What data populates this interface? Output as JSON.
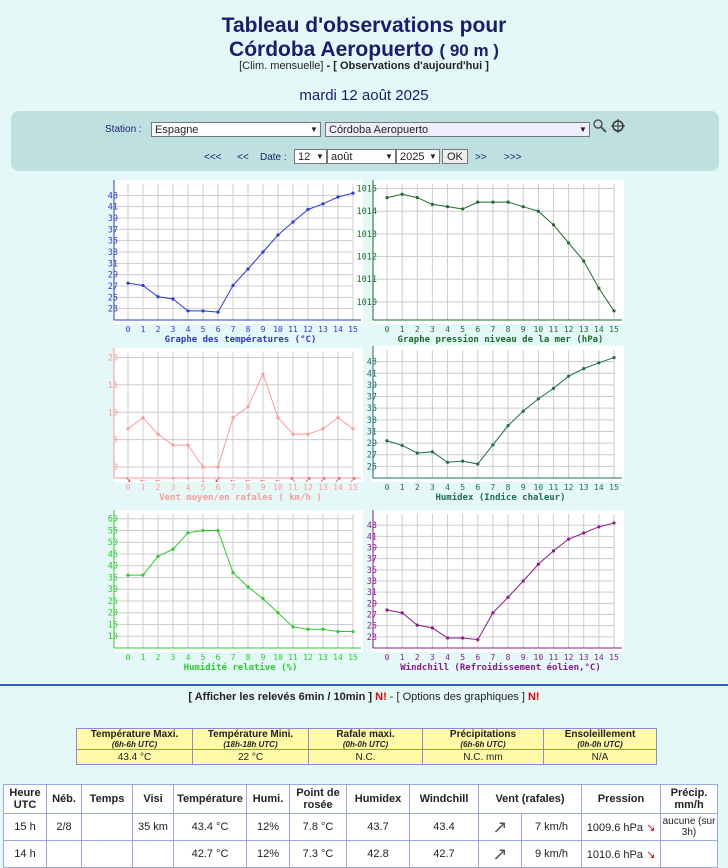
{
  "title": {
    "line1": "Tableau d'observations pour",
    "line2": "Córdoba Aeropuerto",
    "alt": "( 90 m )"
  },
  "links": {
    "clim": "Clim. mensuelle",
    "sep": " - ",
    "obs": "Observations d'aujourd'hui"
  },
  "date_text": "mardi 12 août 2025",
  "station": {
    "label": "Station :",
    "country": "Espagne",
    "name": "Córdoba Aeropuerto"
  },
  "datenav": {
    "far_back": "<<<",
    "back": "<<",
    "label": "Date :",
    "day": "12",
    "month": "août",
    "year": "2025",
    "ok": "OK",
    "fwd": ">>",
    "far_fwd": ">>>"
  },
  "charts": [
    {
      "id": "temp",
      "title": "Graphe des températures (°C)",
      "color": "#2a3bd6",
      "y_ticks": [
        23,
        25,
        27,
        29,
        31,
        33,
        35,
        37,
        39,
        41,
        43
      ],
      "ylim": [
        21,
        45
      ],
      "values": [
        27.5,
        27.1,
        25.1,
        24.7,
        22.6,
        22.6,
        22.4,
        27.1,
        30.0,
        33.0,
        36.0,
        38.3,
        40.5,
        41.5,
        42.7,
        43.4
      ]
    },
    {
      "id": "pres",
      "title": "Graphe pression niveau de la mer (hPa)",
      "color": "#1d6b2a",
      "y_ticks": [
        1010,
        1011,
        1012,
        1013,
        1014,
        1015
      ],
      "ylim": [
        1009.2,
        1015.2
      ],
      "values": [
        1014.6,
        1014.75,
        1014.6,
        1014.3,
        1014.2,
        1014.1,
        1014.4,
        1014.4,
        1014.4,
        1014.2,
        1014.0,
        1013.4,
        1012.6,
        1011.8,
        1010.6,
        1009.6
      ]
    },
    {
      "id": "vent",
      "title": "Vent moyen/en rafales ( km/h )",
      "color": "#ff9a9a",
      "y_ticks": [
        0,
        5,
        10,
        15,
        20
      ],
      "ylim": [
        -2,
        21
      ],
      "values": [
        7,
        9,
        6,
        4,
        4,
        0,
        0,
        9,
        11,
        17,
        9,
        6,
        6,
        7,
        9,
        7
      ],
      "arrows": [
        "↘",
        "←",
        "←",
        "↑",
        "↑",
        "↓",
        "↙",
        "←",
        "←",
        "←",
        "←",
        "↖",
        "↗",
        "↗",
        "↗",
        "↗"
      ]
    },
    {
      "id": "humidex",
      "title": "Humidex (Indice chaleur)",
      "color": "#1f6b5b",
      "y_ticks": [
        25,
        27,
        29,
        31,
        33,
        35,
        37,
        39,
        41,
        43
      ],
      "ylim": [
        23,
        45
      ],
      "values": [
        29.4,
        28.6,
        27.3,
        27.5,
        25.7,
        25.9,
        25.4,
        28.7,
        32.0,
        34.5,
        36.6,
        38.4,
        40.5,
        41.8,
        42.8,
        43.7
      ]
    },
    {
      "id": "hum",
      "title": "Humidité relative (%)",
      "color": "#2ccc2c",
      "y_ticks": [
        10,
        15,
        20,
        25,
        30,
        35,
        40,
        45,
        50,
        55,
        60
      ],
      "ylim": [
        5,
        62
      ],
      "values": [
        36,
        36,
        44,
        47,
        54,
        55,
        55,
        37,
        31,
        26,
        20,
        14,
        13,
        13,
        12,
        12
      ]
    },
    {
      "id": "wind",
      "title": "Windchill (Refroidissement éolien,°C)",
      "color": "#8b1a8b",
      "y_ticks": [
        23,
        25,
        27,
        29,
        31,
        33,
        35,
        37,
        39,
        41,
        43
      ],
      "ylim": [
        21,
        45
      ],
      "values": [
        27.8,
        27.3,
        25.1,
        24.6,
        22.8,
        22.8,
        22.5,
        27.3,
        30.1,
        33.0,
        36.0,
        38.4,
        40.5,
        41.6,
        42.7,
        43.4
      ]
    }
  ],
  "x_ticks": [
    "0",
    "1",
    "2",
    "3",
    "4",
    "5",
    "6",
    "7",
    "8",
    "9",
    "10",
    "11",
    "12",
    "13",
    "14",
    "15"
  ],
  "options_line": {
    "lb": "[",
    "show": "Afficher les relevés 6min / 10min",
    "rb": "]",
    "n1": "N!",
    "mid": " - [ Options des graphiques ]",
    "n2": "N!"
  },
  "summary": {
    "headers": [
      {
        "t": "Température Maxi.",
        "s": "(6h-6h UTC)"
      },
      {
        "t": "Température Mini.",
        "s": "(18h-18h UTC)"
      },
      {
        "t": "Rafale maxi.",
        "s": "(0h-0h UTC)"
      },
      {
        "t": "Précipitations",
        "s": "(6h-6h UTC)"
      },
      {
        "t": "Ensoleillement",
        "s": "(0h-0h UTC)"
      }
    ],
    "values": [
      "43.4 °C",
      "22 °C",
      "N.C.",
      "N.C. mm",
      "N/A"
    ]
  },
  "table": {
    "headers": [
      "Heure UTC",
      "Néb.",
      "Temps",
      "Visi",
      "Température",
      "Humi.",
      "Point de rosée",
      "Humidex",
      "Windchill",
      "Vent (rafales)",
      "Pression",
      "Précip. mm/h"
    ],
    "rows": [
      {
        "heure": "15 h",
        "neb": "2/8",
        "temps": "",
        "visi": "35 km",
        "temp": "43.4 °C",
        "hum": "12%",
        "rosee": "7.8 °C",
        "humidex": "43.7",
        "wc": "43.4",
        "dir": "↗",
        "vent": "7 km/h",
        "pres": "1009.6 hPa",
        "trend": "↘",
        "precip": "aucune (sur 3h)"
      },
      {
        "heure": "14 h",
        "neb": "",
        "temps": "",
        "visi": "",
        "temp": "42.7 °C",
        "hum": "12%",
        "rosee": "7.3 °C",
        "humidex": "42.8",
        "wc": "42.7",
        "dir": "↗",
        "vent": "9 km/h",
        "pres": "1010.6 hPa",
        "trend": "↘",
        "precip": ""
      }
    ]
  }
}
